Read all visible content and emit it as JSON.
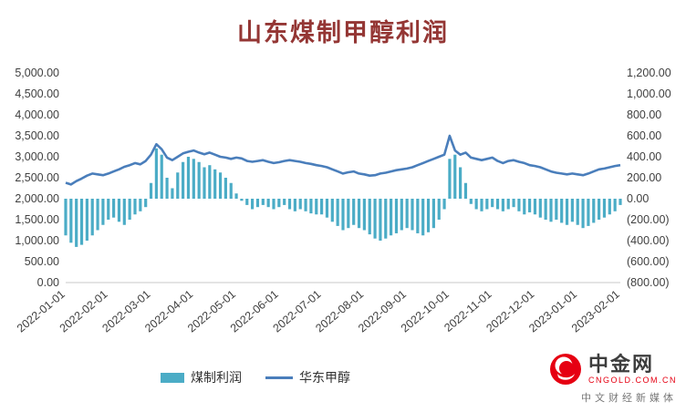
{
  "title": "山东煤制甲醇利润",
  "colors": {
    "bar": "#4BACC6",
    "line": "#4A7EBB",
    "title": "#943634",
    "axis_text": "#3f3f3f",
    "logo_red": "#E60012"
  },
  "chart_data": {
    "type": "bar+line combo, dual y-axis",
    "title": "山东煤制甲醇利润",
    "x_tick_labels": [
      "2022-01-01",
      "2022-02-01",
      "2022-03-01",
      "2022-04-01",
      "2022-05-01",
      "2022-06-01",
      "2022-07-01",
      "2022-08-01",
      "2022-09-01",
      "2022-10-01",
      "2022-11-01",
      "2022-12-01",
      "2023-01-01",
      "2023-02-01"
    ],
    "left_axis": {
      "min": 0,
      "max": 5000,
      "step": 500,
      "ticks_bottom_to_top": [
        "0.00",
        "500.00",
        "1,000.00",
        "1,500.00",
        "2,000.00",
        "2,500.00",
        "3,000.00",
        "3,500.00",
        "4,000.00",
        "4,500.00",
        "5,000.00"
      ]
    },
    "right_axis": {
      "min": -800,
      "max": 1200,
      "step": 200,
      "ticks_bottom_to_top": [
        "(800.00)",
        "(600.00)",
        "(400.00)",
        "(200.00)",
        "0.00",
        "200.00",
        "400.00",
        "600.00",
        "800.00",
        "1,000.00",
        "1,200.00"
      ]
    },
    "grid": false,
    "legend_position": "bottom-center",
    "series": [
      {
        "name": "煤制利润",
        "type": "bar",
        "axis": "right",
        "color": "#4BACC6",
        "values": [
          -350,
          -420,
          -460,
          -440,
          -400,
          -350,
          -300,
          -250,
          -200,
          -180,
          -220,
          -250,
          -200,
          -150,
          -120,
          -80,
          150,
          480,
          420,
          200,
          100,
          250,
          350,
          400,
          380,
          350,
          300,
          320,
          280,
          250,
          200,
          150,
          50,
          -20,
          -60,
          -100,
          -80,
          -60,
          -80,
          -100,
          -80,
          -60,
          -100,
          -120,
          -100,
          -120,
          -140,
          -150,
          -150,
          -180,
          -220,
          -260,
          -300,
          -280,
          -250,
          -280,
          -300,
          -340,
          -380,
          -400,
          -380,
          -350,
          -330,
          -300,
          -280,
          -300,
          -330,
          -350,
          -320,
          -280,
          -200,
          -100,
          380,
          420,
          300,
          150,
          -50,
          -100,
          -120,
          -100,
          -80,
          -100,
          -120,
          -100,
          -80,
          -120,
          -150,
          -130,
          -150,
          -180,
          -200,
          -220,
          -200,
          -230,
          -250,
          -220,
          -250,
          -280,
          -260,
          -230,
          -200,
          -180,
          -150,
          -120,
          -60
        ]
      },
      {
        "name": "华东甲醇",
        "type": "line",
        "axis": "left",
        "color": "#4A7EBB",
        "values": [
          2380,
          2340,
          2420,
          2480,
          2550,
          2600,
          2580,
          2560,
          2600,
          2650,
          2700,
          2760,
          2800,
          2850,
          2820,
          2900,
          3050,
          3300,
          3180,
          2980,
          2920,
          3000,
          3080,
          3120,
          3150,
          3100,
          3060,
          3100,
          3050,
          3000,
          2980,
          2950,
          2980,
          2960,
          2900,
          2880,
          2900,
          2920,
          2880,
          2850,
          2870,
          2900,
          2920,
          2900,
          2880,
          2850,
          2830,
          2800,
          2780,
          2750,
          2700,
          2650,
          2600,
          2630,
          2650,
          2600,
          2580,
          2550,
          2560,
          2600,
          2620,
          2650,
          2680,
          2700,
          2720,
          2750,
          2800,
          2850,
          2900,
          2950,
          3000,
          3050,
          3500,
          3150,
          3050,
          3100,
          2980,
          2950,
          2920,
          2950,
          2980,
          2900,
          2850,
          2900,
          2920,
          2880,
          2850,
          2800,
          2780,
          2750,
          2700,
          2650,
          2620,
          2600,
          2580,
          2600,
          2580,
          2560,
          2600,
          2650,
          2700,
          2720,
          2750,
          2780,
          2800
        ]
      }
    ]
  },
  "legend": {
    "items": [
      {
        "label": "煤制利润"
      },
      {
        "label": "华东甲醇"
      }
    ]
  },
  "logo": {
    "name": "中金网",
    "domain": "CNGOLD.COM.CN",
    "tagline": "中文财经新媒体"
  }
}
